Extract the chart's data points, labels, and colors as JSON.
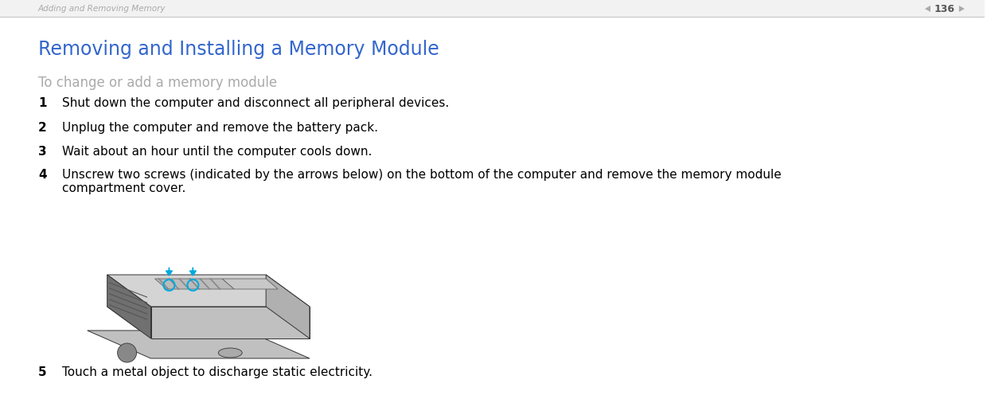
{
  "bg_color": "#ffffff",
  "header_text": "Adding and Removing Memory",
  "header_color": "#aaaaaa",
  "page_num": "136",
  "page_num_color": "#555555",
  "title": "Removing and Installing a Memory Module",
  "title_color": "#3366cc",
  "title_fontsize": 17,
  "subtitle": "To change or add a memory module",
  "subtitle_color": "#aaaaaa",
  "subtitle_fontsize": 12,
  "steps": [
    {
      "num": "1",
      "text": "Shut down the computer and disconnect all peripheral devices."
    },
    {
      "num": "2",
      "text": "Unplug the computer and remove the battery pack."
    },
    {
      "num": "3",
      "text": "Wait about an hour until the computer cools down."
    },
    {
      "num": "4",
      "text": "Unscrew two screws (indicated by the arrows below) on the bottom of the computer and remove the memory module\ncompartment cover."
    },
    {
      "num": "5",
      "text": "Touch a metal object to discharge static electricity."
    }
  ],
  "step_color": "#000000",
  "step_num_fontsize": 11,
  "step_text_fontsize": 11,
  "separator_color": "#cccccc",
  "arrow_color": "#00aadd",
  "screw_circle_color": "#00aadd"
}
